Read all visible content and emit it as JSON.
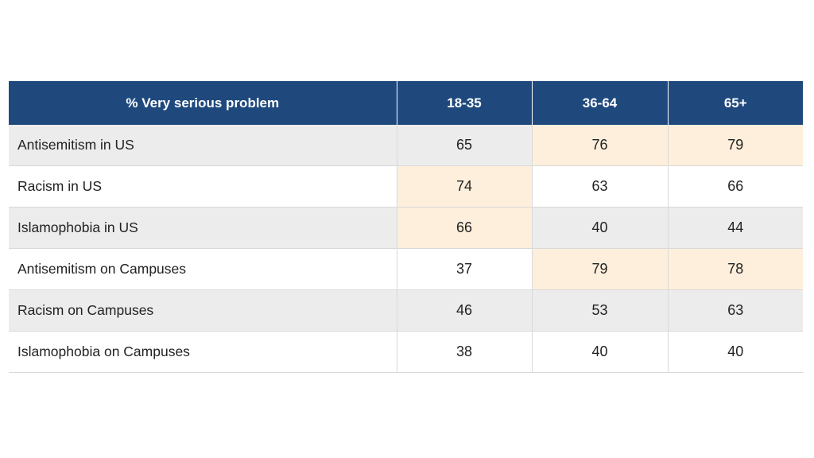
{
  "chart_data": {
    "type": "table",
    "columns": [
      "% Very serious problem",
      "18-35",
      "36-64",
      "65+"
    ],
    "rows": [
      {
        "label": "Antisemitism in US",
        "values": [
          65,
          76,
          79
        ],
        "highlight": [
          false,
          true,
          true
        ]
      },
      {
        "label": "Racism in US",
        "values": [
          74,
          63,
          66
        ],
        "highlight": [
          true,
          false,
          false
        ]
      },
      {
        "label": "Islamophobia in US",
        "values": [
          66,
          40,
          44
        ],
        "highlight": [
          true,
          false,
          false
        ]
      },
      {
        "label": "Antisemitism on Campuses",
        "values": [
          37,
          79,
          78
        ],
        "highlight": [
          false,
          true,
          true
        ]
      },
      {
        "label": "Racism on Campuses",
        "values": [
          46,
          53,
          63
        ],
        "highlight": [
          false,
          false,
          false
        ]
      },
      {
        "label": "Islamophobia on Campuses",
        "values": [
          38,
          40,
          40
        ],
        "highlight": [
          false,
          false,
          false
        ]
      }
    ],
    "colors": {
      "header_bg": "#1f497d",
      "header_text": "#ffffff",
      "row_shade": "#ececec",
      "highlight": "#fdefdc"
    }
  }
}
